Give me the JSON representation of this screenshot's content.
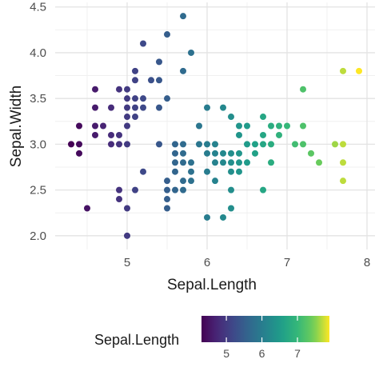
{
  "chart_data": {
    "type": "scatter",
    "title": "",
    "xlabel": "Sepal.Length",
    "ylabel": "Sepal.Width",
    "xlim": [
      4.1,
      8.1
    ],
    "ylim": [
      1.85,
      4.55
    ],
    "x_ticks": [
      "5",
      "6",
      "7",
      "8"
    ],
    "x_tick_values": [
      5,
      6,
      7,
      8
    ],
    "y_ticks": [
      "2.0",
      "2.5",
      "3.0",
      "3.5",
      "4.0",
      "4.5"
    ],
    "y_tick_values": [
      2.0,
      2.5,
      3.0,
      3.5,
      4.0,
      4.5
    ],
    "grid": true,
    "color_by": "Sepal.Length",
    "colormap": "viridis",
    "legend": {
      "title": "Sepal.Length",
      "placement": "bottom",
      "range": [
        4.3,
        7.9
      ],
      "ticks": [
        "5",
        "6",
        "7"
      ],
      "tick_values": [
        5,
        6,
        7
      ]
    },
    "points": [
      [
        4.3,
        3.0
      ],
      [
        4.4,
        2.9
      ],
      [
        4.4,
        3.0
      ],
      [
        4.4,
        3.2
      ],
      [
        4.5,
        2.3
      ],
      [
        4.6,
        3.1
      ],
      [
        4.6,
        3.2
      ],
      [
        4.6,
        3.4
      ],
      [
        4.6,
        3.6
      ],
      [
        4.7,
        3.2
      ],
      [
        4.8,
        3.0
      ],
      [
        4.8,
        3.1
      ],
      [
        4.8,
        3.4
      ],
      [
        4.9,
        2.4
      ],
      [
        4.9,
        2.5
      ],
      [
        4.9,
        3.0
      ],
      [
        4.9,
        3.1
      ],
      [
        4.9,
        3.6
      ],
      [
        5.0,
        2.0
      ],
      [
        5.0,
        2.3
      ],
      [
        5.0,
        3.0
      ],
      [
        5.0,
        3.2
      ],
      [
        5.0,
        3.3
      ],
      [
        5.0,
        3.4
      ],
      [
        5.0,
        3.5
      ],
      [
        5.0,
        3.6
      ],
      [
        5.1,
        2.5
      ],
      [
        5.1,
        3.3
      ],
      [
        5.1,
        3.4
      ],
      [
        5.1,
        3.5
      ],
      [
        5.1,
        3.7
      ],
      [
        5.1,
        3.8
      ],
      [
        5.2,
        2.7
      ],
      [
        5.2,
        3.4
      ],
      [
        5.2,
        3.5
      ],
      [
        5.2,
        4.1
      ],
      [
        5.3,
        3.7
      ],
      [
        5.4,
        3.0
      ],
      [
        5.4,
        3.4
      ],
      [
        5.4,
        3.7
      ],
      [
        5.4,
        3.9
      ],
      [
        5.5,
        2.3
      ],
      [
        5.5,
        2.4
      ],
      [
        5.5,
        2.5
      ],
      [
        5.5,
        2.6
      ],
      [
        5.5,
        3.5
      ],
      [
        5.5,
        4.2
      ],
      [
        5.6,
        2.5
      ],
      [
        5.6,
        2.7
      ],
      [
        5.6,
        2.8
      ],
      [
        5.6,
        2.9
      ],
      [
        5.6,
        3.0
      ],
      [
        5.7,
        2.5
      ],
      [
        5.7,
        2.6
      ],
      [
        5.7,
        2.8
      ],
      [
        5.7,
        2.9
      ],
      [
        5.7,
        3.0
      ],
      [
        5.7,
        3.8
      ],
      [
        5.7,
        4.4
      ],
      [
        5.8,
        2.6
      ],
      [
        5.8,
        2.7
      ],
      [
        5.8,
        2.8
      ],
      [
        5.8,
        4.0
      ],
      [
        5.9,
        3.0
      ],
      [
        5.9,
        3.2
      ],
      [
        6.0,
        2.2
      ],
      [
        6.0,
        2.7
      ],
      [
        6.0,
        2.9
      ],
      [
        6.0,
        3.0
      ],
      [
        6.0,
        3.4
      ],
      [
        6.1,
        2.6
      ],
      [
        6.1,
        2.8
      ],
      [
        6.1,
        2.9
      ],
      [
        6.1,
        3.0
      ],
      [
        6.2,
        2.2
      ],
      [
        6.2,
        2.8
      ],
      [
        6.2,
        2.9
      ],
      [
        6.2,
        3.4
      ],
      [
        6.3,
        2.3
      ],
      [
        6.3,
        2.5
      ],
      [
        6.3,
        2.7
      ],
      [
        6.3,
        2.8
      ],
      [
        6.3,
        2.9
      ],
      [
        6.3,
        3.3
      ],
      [
        6.4,
        2.7
      ],
      [
        6.4,
        2.8
      ],
      [
        6.4,
        2.9
      ],
      [
        6.4,
        3.1
      ],
      [
        6.4,
        3.2
      ],
      [
        6.5,
        2.8
      ],
      [
        6.5,
        3.0
      ],
      [
        6.5,
        3.2
      ],
      [
        6.6,
        2.9
      ],
      [
        6.6,
        3.0
      ],
      [
        6.7,
        2.5
      ],
      [
        6.7,
        3.0
      ],
      [
        6.7,
        3.1
      ],
      [
        6.7,
        3.3
      ],
      [
        6.8,
        2.8
      ],
      [
        6.8,
        3.0
      ],
      [
        6.8,
        3.2
      ],
      [
        6.9,
        3.1
      ],
      [
        6.9,
        3.2
      ],
      [
        7.0,
        3.2
      ],
      [
        7.1,
        3.0
      ],
      [
        7.2,
        3.0
      ],
      [
        7.2,
        3.2
      ],
      [
        7.2,
        3.6
      ],
      [
        7.3,
        2.9
      ],
      [
        7.4,
        2.8
      ],
      [
        7.6,
        3.0
      ],
      [
        7.7,
        2.6
      ],
      [
        7.7,
        2.8
      ],
      [
        7.7,
        3.0
      ],
      [
        7.7,
        3.8
      ],
      [
        7.9,
        3.8
      ]
    ]
  }
}
